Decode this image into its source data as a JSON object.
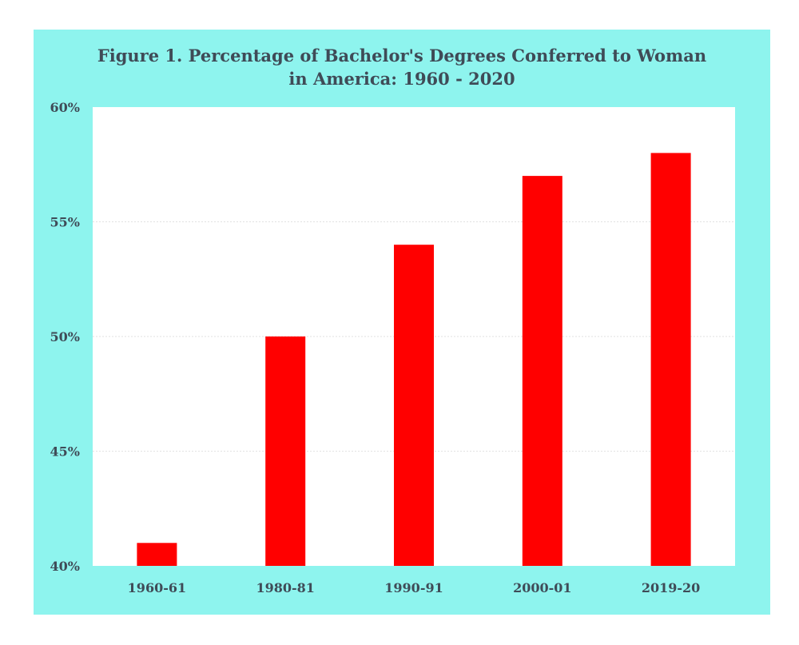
{
  "chart_data": {
    "type": "bar",
    "title_lines": [
      "Figure 1. Percentage of Bachelor's Degrees Conferred to Woman",
      "in America: 1960 - 2020"
    ],
    "categories": [
      "1960-61",
      "1980-81",
      "1990-91",
      "2000-01",
      "2019-20"
    ],
    "values": [
      41,
      50,
      54,
      57,
      58
    ],
    "ylim": [
      40,
      60
    ],
    "yticks": [
      40,
      45,
      50,
      55,
      60
    ],
    "ytick_labels": [
      "40%",
      "45%",
      "50%",
      "55%",
      "60%"
    ],
    "xlabel": "",
    "ylabel": "",
    "bar_color": "#ff0000",
    "frame_color": "#8ef4ee",
    "plot_background": "#ffffff",
    "grid": true,
    "legend": "none"
  }
}
